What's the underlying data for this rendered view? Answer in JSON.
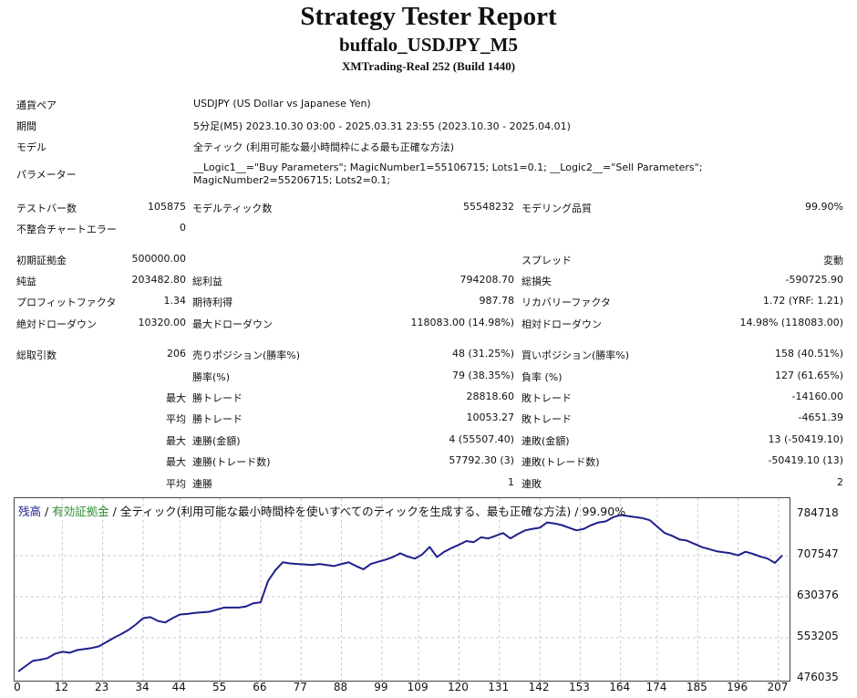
{
  "header": {
    "title": "Strategy Tester Report",
    "subtitle": "buffalo_USDJPY_M5",
    "server": "XMTrading-Real 252 (Build 1440)"
  },
  "info": [
    {
      "label": "通貨ペア",
      "value": "USDJPY (US Dollar vs Japanese Yen)"
    },
    {
      "label": "期間",
      "value": "5分足(M5) 2023.10.30 03:00 - 2025.03.31 23:55 (2023.10.30 - 2025.04.01)"
    },
    {
      "label": "モデル",
      "value": "全ティック (利用可能な最小時間枠による最も正確な方法)"
    },
    {
      "label": "パラメーター",
      "value": "__Logic1__=\"Buy Parameters\"; MagicNumber1=55106715; Lots1=0.1; __Logic2__=\"Sell Parameters\"; MagicNumber2=55206715; Lots2=0.1;"
    }
  ],
  "stats": {
    "test_bars_label": "テストバー数",
    "test_bars": "105875",
    "model_ticks_label": "モデルティック数",
    "model_ticks": "55548232",
    "model_quality_label": "モデリング品質",
    "model_quality": "99.90%",
    "mismatch_label": "不整合チャートエラー",
    "mismatch": "0",
    "initial_deposit_label": "初期証拠金",
    "initial_deposit": "500000.00",
    "spread_label": "スプレッド",
    "spread": "変動",
    "net_profit_label": "純益",
    "net_profit": "203482.80",
    "gross_profit_label": "総利益",
    "gross_profit": "794208.70",
    "gross_loss_label": "総損失",
    "gross_loss": "-590725.90",
    "profit_factor_label": "プロフィットファクタ",
    "profit_factor": "1.34",
    "expected_payoff_label": "期待利得",
    "expected_payoff": "987.78",
    "recovery_factor_label": "リカバリーファクタ",
    "recovery_factor": "1.72 (YRF: 1.21)",
    "abs_dd_label": "絶対ドローダウン",
    "abs_dd": "10320.00",
    "max_dd_label": "最大ドローダウン",
    "max_dd": "118083.00 (14.98%)",
    "rel_dd_label": "相対ドローダウン",
    "rel_dd": "14.98% (118083.00)",
    "total_trades_label": "総取引数",
    "total_trades": "206",
    "short_label": "売りポジション(勝率%)",
    "short": "48 (31.25%)",
    "long_label": "買いポジション(勝率%)",
    "long": "158 (40.51%)",
    "win_rate_label": "勝率(%)",
    "win_rate": "79 (38.35%)",
    "loss_rate_label": "負率 (%)",
    "loss_rate": "127 (61.65%)",
    "max_label": "最大",
    "avg_label": "平均",
    "win_trade_label": "勝トレード",
    "loss_trade_label": "敗トレード",
    "max_win": "28818.60",
    "max_loss": "-14160.00",
    "avg_win": "10053.27",
    "avg_loss": "-4651.39",
    "consec_wins_amt_label": "連勝(金額)",
    "consec_wins_amt": "4 (55507.40)",
    "consec_losses_amt_label": "連敗(金額)",
    "consec_losses_amt": "13 (-50419.10)",
    "consec_wins_trades_label": "連勝(トレード数)",
    "consec_wins_trades": "57792.30 (3)",
    "consec_losses_trades_label": "連敗(トレード数)",
    "consec_losses_trades": "-50419.10 (13)",
    "avg_consec_wins_label": "連勝",
    "avg_consec_wins": "1",
    "avg_consec_losses_label": "連敗",
    "avg_consec_losses": "2"
  },
  "legend": {
    "balance": "残高",
    "sep1": " / ",
    "equity": "有効証拠金",
    "sep2": " / ",
    "rest": "全ティック(利用可能な最小時間枠を使いすべてのティックを生成する、最も正確な方法) / 99.90%"
  },
  "colors": {
    "balance_line": "#1f1f8c",
    "equity_line": "#2e8b2e",
    "grid": "#c8c8c8"
  },
  "chart_data": {
    "type": "line",
    "ylim": [
      476035,
      784718
    ],
    "xlim": [
      0,
      209
    ],
    "y_ticks": [
      "784718",
      "707547",
      "630376",
      "553205",
      "476035"
    ],
    "x_ticks": [
      "0",
      "12",
      "23",
      "34",
      "44",
      "55",
      "66",
      "77",
      "88",
      "99",
      "109",
      "120",
      "131",
      "142",
      "153",
      "164",
      "174",
      "185",
      "196",
      "207"
    ],
    "grid": true,
    "series": [
      {
        "name": "残高",
        "x": [
          0,
          2,
          4,
          6,
          8,
          10,
          12,
          14,
          16,
          18,
          20,
          22,
          24,
          26,
          28,
          30,
          32,
          34,
          36,
          38,
          40,
          42,
          44,
          46,
          48,
          50,
          52,
          54,
          56,
          58,
          60,
          62,
          64,
          66,
          68,
          70,
          72,
          74,
          76,
          78,
          80,
          82,
          84,
          86,
          88,
          90,
          92,
          94,
          96,
          98,
          100,
          102,
          104,
          106,
          108,
          110,
          112,
          114,
          116,
          118,
          120,
          122,
          124,
          126,
          128,
          130,
          132,
          134,
          136,
          138,
          140,
          142,
          144,
          146,
          148,
          150,
          152,
          154,
          156,
          158,
          160,
          162,
          164,
          166,
          168,
          170,
          172,
          174,
          176,
          178,
          180,
          182,
          184,
          186,
          188,
          190,
          192,
          194,
          196,
          198,
          200,
          202,
          204,
          206,
          208
        ],
        "values": [
          490000,
          500000,
          510000,
          512000,
          515000,
          523000,
          527000,
          525000,
          530000,
          532000,
          534000,
          537000,
          545000,
          553000,
          560000,
          568000,
          578000,
          590000,
          592000,
          585000,
          582000,
          590000,
          597000,
          598000,
          600000,
          601000,
          602000,
          606000,
          610000,
          610000,
          610000,
          612000,
          618000,
          620000,
          660000,
          680000,
          695000,
          693000,
          692000,
          691000,
          690000,
          692000,
          690000,
          688000,
          692000,
          695000,
          688000,
          682000,
          692000,
          696000,
          700000,
          705000,
          712000,
          706000,
          702000,
          710000,
          724000,
          705000,
          715000,
          722000,
          728000,
          735000,
          733000,
          742000,
          740000,
          745000,
          750000,
          740000,
          748000,
          755000,
          758000,
          760000,
          770000,
          768000,
          765000,
          760000,
          755000,
          758000,
          765000,
          770000,
          772000,
          780000,
          784000,
          782000,
          780000,
          778000,
          774000,
          762000,
          750000,
          745000,
          738000,
          736000,
          730000,
          724000,
          720000,
          716000,
          714000,
          712000,
          708000,
          715000,
          711000,
          706000,
          702000,
          694000,
          708000
        ]
      }
    ]
  }
}
